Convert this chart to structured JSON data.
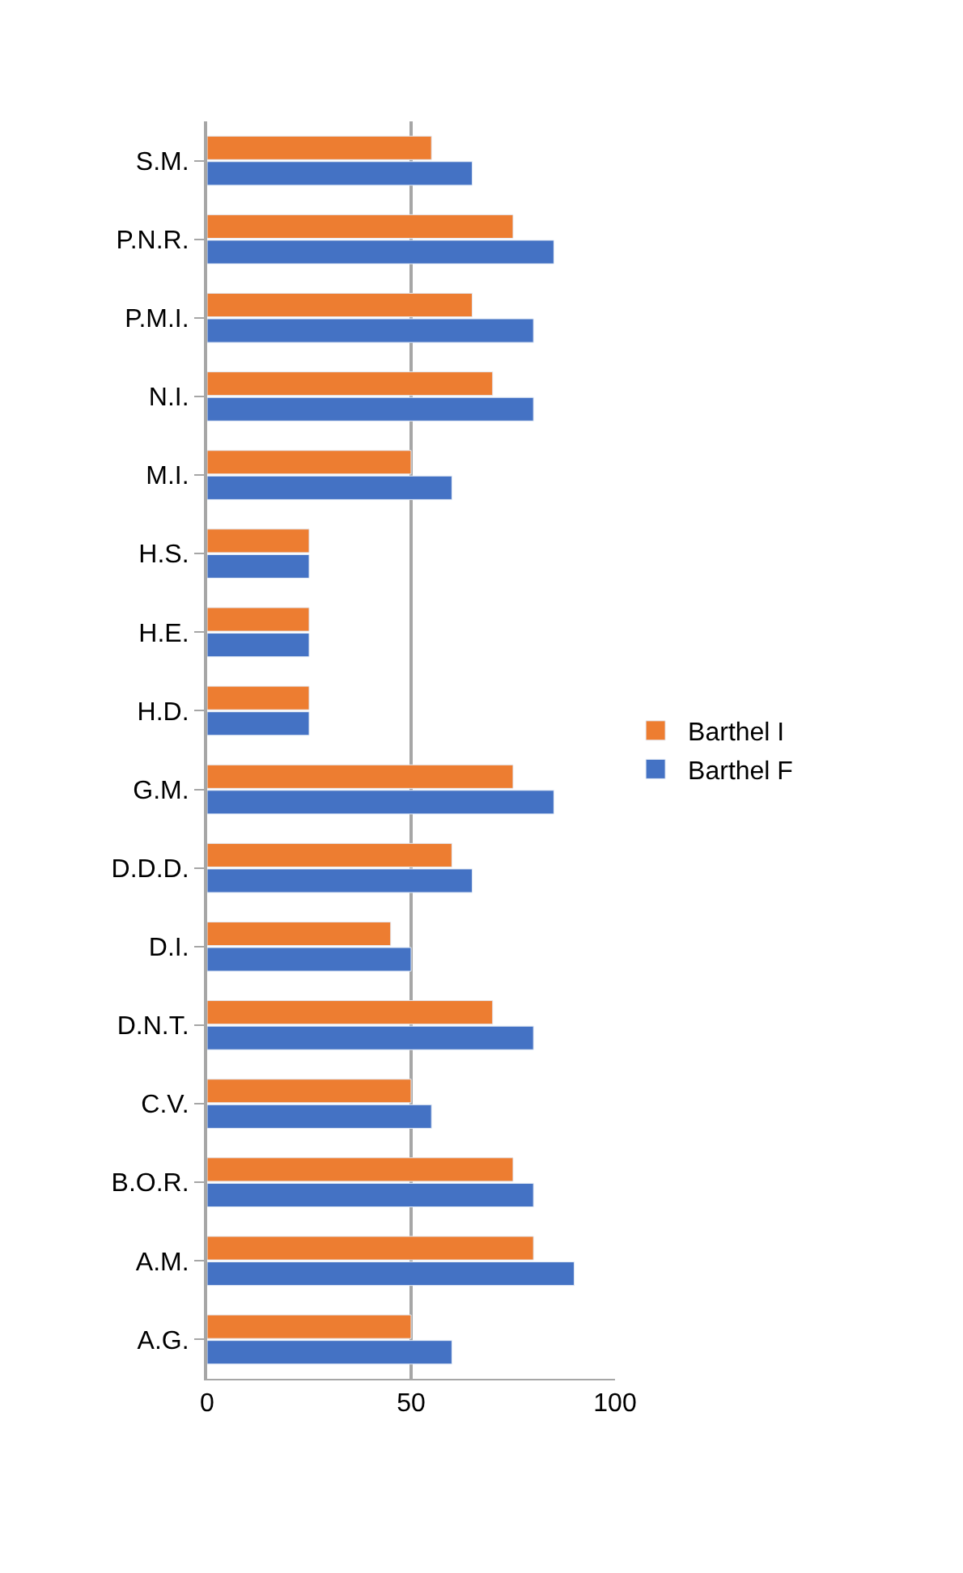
{
  "chart_data": {
    "type": "bar",
    "orientation": "horizontal",
    "categories": [
      "S.M.",
      "P.N.R.",
      "P.M.I.",
      "N.I.",
      "M.I.",
      "H.S.",
      "H.E.",
      "H.D.",
      "G.M.",
      "D.D.D.",
      "D.I.",
      "D.N.T.",
      "C.V.",
      "B.O.R.",
      "A.M.",
      "A.G."
    ],
    "series": [
      {
        "name": "Barthel I",
        "color": "#ed7d31",
        "values": [
          55,
          75,
          65,
          70,
          50,
          25,
          25,
          25,
          75,
          60,
          45,
          70,
          50,
          75,
          80,
          50
        ]
      },
      {
        "name": "Barthel F",
        "color": "#4472c4",
        "values": [
          65,
          85,
          80,
          80,
          60,
          25,
          25,
          25,
          85,
          65,
          50,
          80,
          55,
          80,
          90,
          60
        ]
      }
    ],
    "xlim": [
      0,
      100
    ],
    "xticks": [
      0,
      50,
      100
    ],
    "grid": "x",
    "legend": "right"
  }
}
